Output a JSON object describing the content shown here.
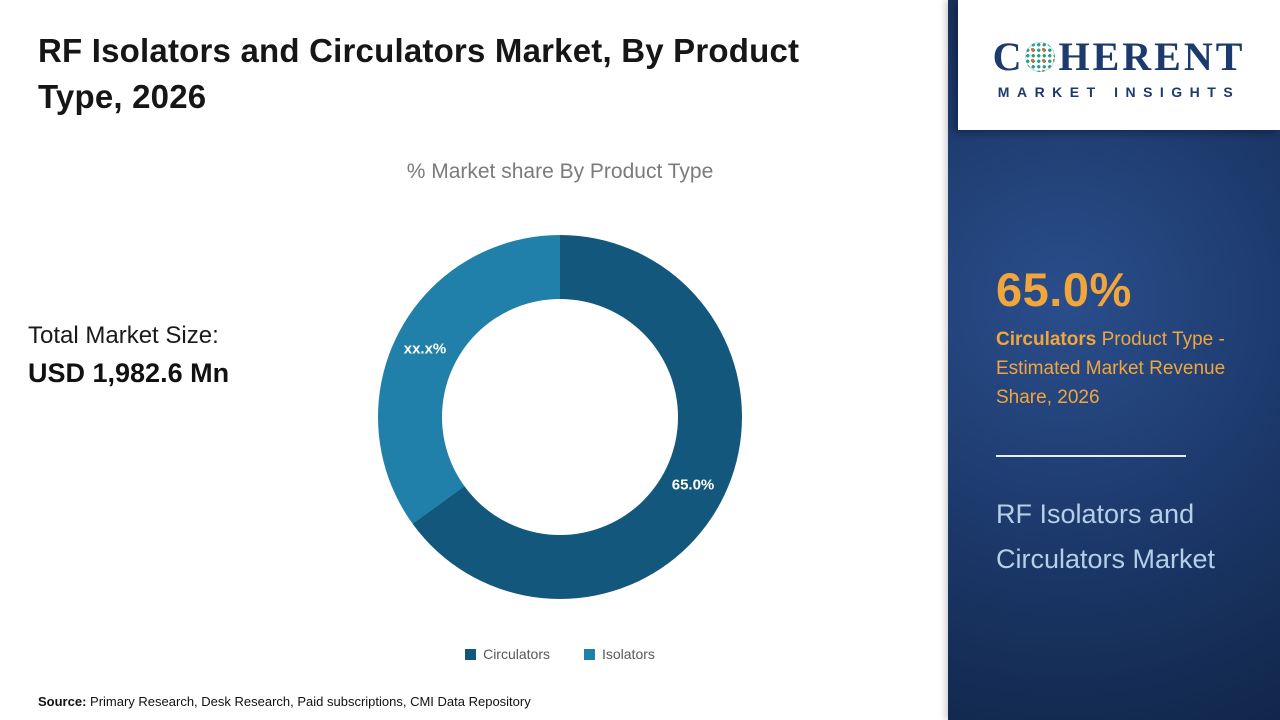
{
  "header": {
    "title": "RF Isolators and Circulators Market, By Product Type, 2026"
  },
  "chart_data": {
    "type": "pie",
    "subtype": "donut",
    "title": "% Market share By Product Type",
    "categories": [
      "Circulators",
      "Isolators"
    ],
    "values": [
      65.0,
      35.0
    ],
    "value_labels": [
      "65.0%",
      "xx.x%"
    ],
    "colors": [
      "#14577d",
      "#2080a9"
    ],
    "start_angle_deg": 0,
    "legend_position": "bottom"
  },
  "totals": {
    "label": "Total Market Size:",
    "value": "USD 1,982.6 Mn"
  },
  "source": {
    "label": "Source:",
    "text": " Primary Research, Desk Research, Paid subscriptions, CMI Data Repository"
  },
  "sidebar": {
    "logo": {
      "part1": "C",
      "part2": "HERENT",
      "line2": "MARKET INSIGHTS"
    },
    "stat_value": "65.0%",
    "stat_desc_bold": "Circulators",
    "stat_desc_rest": " Product Type - Estimated Market Revenue Share, 2026",
    "market_name": "RF Isolators and Circulators Market"
  },
  "colors": {
    "panel_navy": "#1b3768",
    "accent_gold": "#f0a63c",
    "panel_light_blue": "#b5cfe8",
    "circulators": "#14577d",
    "isolators": "#2080a9"
  }
}
